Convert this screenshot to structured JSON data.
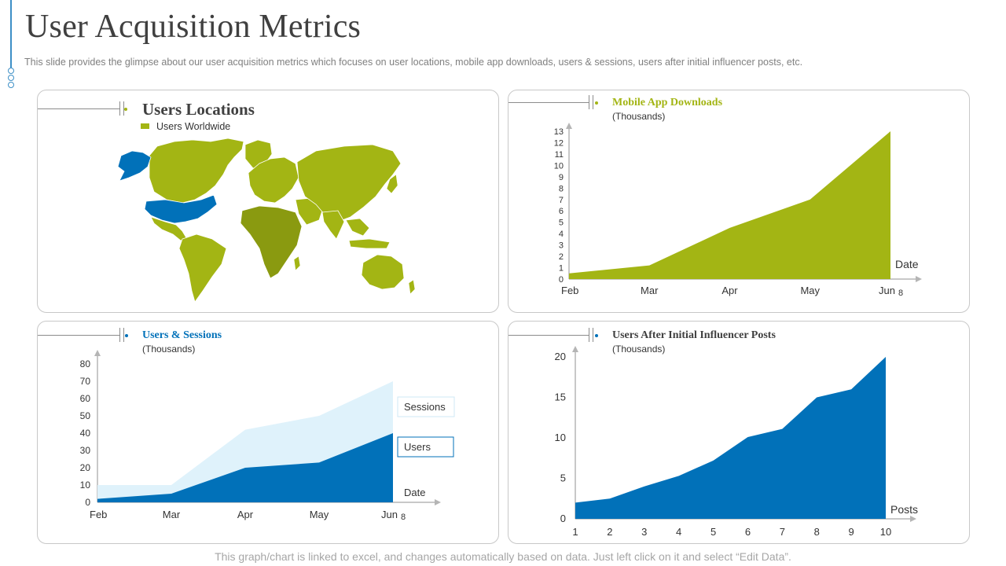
{
  "page": {
    "title": "User Acquisition Metrics",
    "subtitle": "This slide provides  the glimpse about our user acquisition metrics which focuses on user locations, mobile app downloads,  users & sessions, users after initial influencer posts, etc.",
    "footer": "This graph/chart is linked to excel,  and changes automatically based on data. Just left click on it and select “Edit Data”."
  },
  "colors": {
    "green": "#a3b514",
    "green_dark": "#7c8a0c",
    "blue": "#0171b9",
    "light_blue": "#dff2fb",
    "axis": "#b5b5b5"
  },
  "locations": {
    "title": "Users Locations",
    "legend": "Users Worldwide"
  },
  "chart_data": [
    {
      "id": "mobile_downloads",
      "type": "area",
      "title": "Mobile App Downloads",
      "subtitle": "(Thousands)",
      "categories": [
        "Feb",
        "Mar",
        "Apr",
        "May",
        "Jun"
      ],
      "x_end_label": "8",
      "xlabel": "Date",
      "values": [
        0.5,
        1.2,
        4.5,
        7,
        13
      ],
      "yticks": [
        0,
        1,
        2,
        3,
        4,
        5,
        6,
        7,
        8,
        9,
        10,
        11,
        12,
        13
      ],
      "ylim": [
        0,
        13
      ]
    },
    {
      "id": "users_sessions",
      "type": "area",
      "title": "Users & Sessions",
      "subtitle": "(Thousands)",
      "categories": [
        "Feb",
        "Mar",
        "Apr",
        "May",
        "Jun"
      ],
      "x_end_label": "8",
      "xlabel": "Date",
      "series": [
        {
          "name": "Sessions",
          "values": [
            10,
            10,
            42,
            50,
            70
          ]
        },
        {
          "name": "Users",
          "values": [
            2,
            5,
            20,
            23,
            40
          ]
        }
      ],
      "yticks": [
        0,
        10,
        20,
        30,
        40,
        50,
        60,
        70,
        80
      ],
      "ylim": [
        0,
        80
      ]
    },
    {
      "id": "influencer_posts",
      "type": "area",
      "title": "Users After Initial Influencer Posts",
      "subtitle": "(Thousands)",
      "x": [
        1,
        2,
        3,
        4,
        5,
        6,
        7,
        8,
        9,
        10
      ],
      "xlabel": "Posts",
      "values": [
        2,
        2.5,
        4,
        5.3,
        7.2,
        10.1,
        11.1,
        15,
        16,
        20
      ],
      "yticks": [
        0,
        5,
        10,
        15,
        20
      ],
      "ylim": [
        0,
        20
      ]
    }
  ]
}
